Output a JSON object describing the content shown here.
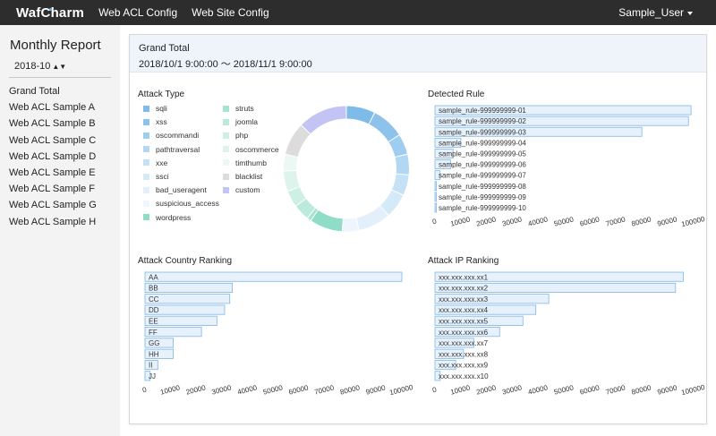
{
  "navbar": {
    "brand": "WafCharm",
    "links": [
      "Web ACL Config",
      "Web Site Config"
    ],
    "user": "Sample_User"
  },
  "sidebar": {
    "title": "Monthly Report",
    "month": "2018-10",
    "items": [
      "Grand Total",
      "Web ACL Sample A",
      "Web ACL Sample B",
      "Web ACL Sample C",
      "Web ACL Sample D",
      "Web ACL Sample E",
      "Web ACL Sample F",
      "Web ACL Sample G",
      "Web ACL Sample H"
    ]
  },
  "report": {
    "title": "Grand Total",
    "range": "2018/10/1 9:00:00 〜 2018/11/1 9:00:00"
  },
  "colors": {
    "bar_fill": "#e6f1fb",
    "bar_stroke": "#7fb6e6"
  },
  "chart_data": [
    {
      "id": "attack-type",
      "type": "pie",
      "title": "Attack Type",
      "labels": [
        "sqli",
        "xss",
        "oscommandi",
        "pathtraversal",
        "xxe",
        "ssci",
        "bad_useragent",
        "suspicious_access",
        "wordpress",
        "struts",
        "joomla",
        "php",
        "oscommerce",
        "timthumb",
        "blacklist",
        "custom"
      ],
      "colors": [
        "#7fbbe8",
        "#8cc2ec",
        "#9fcdf0",
        "#b2d7f3",
        "#c4e1f6",
        "#d5eaf9",
        "#e3f0fb",
        "#eef5fc",
        "#8fdcc7",
        "#a6e3d1",
        "#bbe9db",
        "#cdefe4",
        "#ddf3ec",
        "#ebf8f3",
        "#dcdcdc",
        "#c4c4f4"
      ],
      "values": [
        7,
        8,
        5,
        5,
        5,
        6,
        8,
        4,
        8,
        1,
        4,
        4,
        5,
        4,
        8,
        12
      ]
    },
    {
      "id": "detected-rule",
      "type": "bar",
      "title": "Detected Rule",
      "categories": [
        "sample_rule-999999999-01",
        "sample_rule-999999999-02",
        "sample_rule-999999999-03",
        "sample_rule-999999999-04",
        "sample_rule-999999999-05",
        "sample_rule-999999999-06",
        "sample_rule-999999999-07",
        "sample_rule-999999999-08",
        "sample_rule-999999999-09",
        "sample_rule-999999999-10"
      ],
      "values": [
        99000,
        98000,
        80000,
        10000,
        7000,
        6000,
        2000,
        0,
        0,
        0
      ],
      "xticks": [
        0,
        10000,
        20000,
        30000,
        40000,
        50000,
        60000,
        70000,
        80000,
        90000,
        100000
      ]
    },
    {
      "id": "attack-country",
      "type": "bar",
      "title": "Attack Country Ranking",
      "categories": [
        "AA",
        "BB",
        "CC",
        "DD",
        "EE",
        "FF",
        "GG",
        "HH",
        "II",
        "JJ"
      ],
      "values": [
        100000,
        34000,
        33000,
        31000,
        28000,
        22000,
        11000,
        11000,
        5000,
        2000
      ],
      "xticks": [
        0,
        10000,
        20000,
        30000,
        40000,
        50000,
        60000,
        70000,
        80000,
        90000,
        100000
      ]
    },
    {
      "id": "attack-ip",
      "type": "bar",
      "title": "Attack IP Ranking",
      "categories": [
        "xxx.xxx.xxx.xx1",
        "xxx.xxx.xxx.xx2",
        "xxx.xxx.xxx.xx3",
        "xxx.xxx.xxx.xx4",
        "xxx.xxx.xxx.xx5",
        "xxx.xxx.xxx.xx6",
        "xxx.xxx.xxx.xx7",
        "xxx.xxx.xxx.xx8",
        "xxx.xxx.xxx.xx9",
        "xxx.xxx.xxx.x10"
      ],
      "values": [
        96000,
        93000,
        44000,
        39000,
        34000,
        25000,
        15000,
        11000,
        8000,
        2000
      ],
      "xticks": [
        0,
        10000,
        20000,
        30000,
        40000,
        50000,
        60000,
        70000,
        80000,
        90000,
        100000
      ]
    }
  ]
}
